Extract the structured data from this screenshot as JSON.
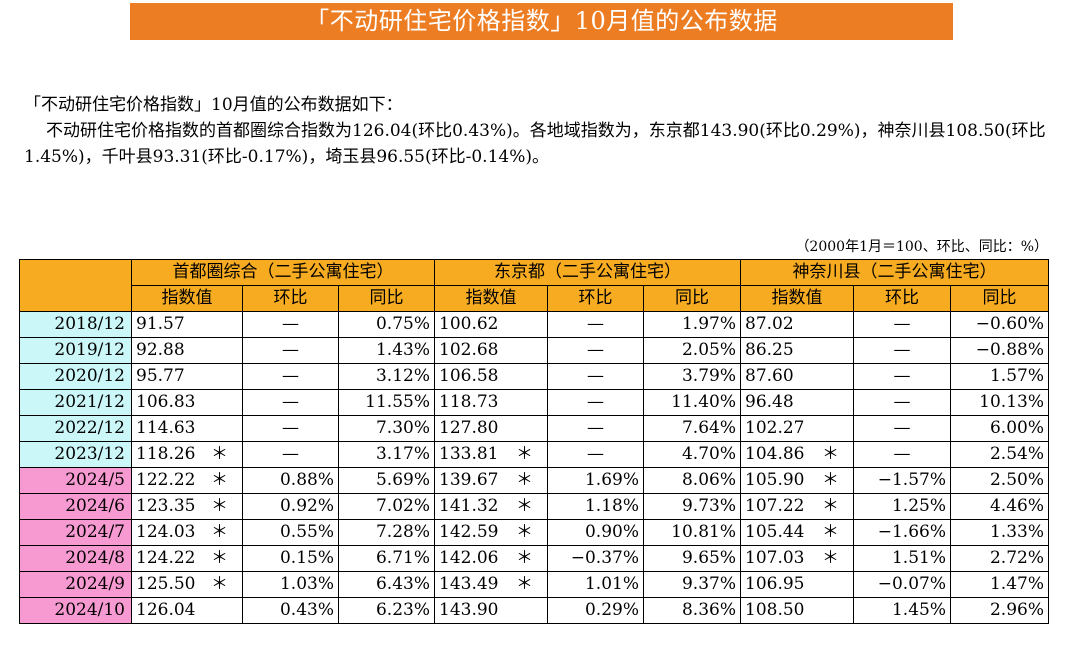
{
  "title": "「不动研住宅价格指数」10月值的公布数据",
  "intro": {
    "line1": "「不动研住宅价格指数」10月值的公布数据如下：",
    "paragraph": "不动研住宅价格指数的首都圈综合指数为126.04(环比0.43%)。各地域指数为，东京都143.90(环比0.29%)，神奈川县108.50(环比1.45%)，千叶县93.31(环比-0.17%)，埼玉县96.55(环比-0.14%)。"
  },
  "unit_note": "（2000年1月＝100、环比、同比：%）",
  "table": {
    "groups": [
      "首都圈综合（二手公寓住宅）",
      "东京都（二手公寓住宅）",
      "神奈川县（二手公寓住宅）"
    ],
    "subheaders": [
      "指数值",
      "环比",
      "同比",
      "指数值",
      "环比",
      "同比",
      "指数值",
      "环比",
      "同比"
    ],
    "rows": [
      {
        "label": "2018/12",
        "type": "annual",
        "cells": [
          {
            "idx": "91.57",
            "star": "",
            "mom": "—",
            "yoy": "0.75%"
          },
          {
            "idx": "100.62",
            "star": "",
            "mom": "—",
            "yoy": "1.97%"
          },
          {
            "idx": "87.02",
            "star": "",
            "mom": "—",
            "yoy": "−0.60%"
          }
        ]
      },
      {
        "label": "2019/12",
        "type": "annual",
        "cells": [
          {
            "idx": "92.88",
            "star": "",
            "mom": "—",
            "yoy": "1.43%"
          },
          {
            "idx": "102.68",
            "star": "",
            "mom": "—",
            "yoy": "2.05%"
          },
          {
            "idx": "86.25",
            "star": "",
            "mom": "—",
            "yoy": "−0.88%"
          }
        ]
      },
      {
        "label": "2020/12",
        "type": "annual",
        "cells": [
          {
            "idx": "95.77",
            "star": "",
            "mom": "—",
            "yoy": "3.12%"
          },
          {
            "idx": "106.58",
            "star": "",
            "mom": "—",
            "yoy": "3.79%"
          },
          {
            "idx": "87.60",
            "star": "",
            "mom": "—",
            "yoy": "1.57%"
          }
        ]
      },
      {
        "label": "2021/12",
        "type": "annual",
        "cells": [
          {
            "idx": "106.83",
            "star": "",
            "mom": "—",
            "yoy": "11.55%"
          },
          {
            "idx": "118.73",
            "star": "",
            "mom": "—",
            "yoy": "11.40%"
          },
          {
            "idx": "96.48",
            "star": "",
            "mom": "—",
            "yoy": "10.13%"
          }
        ]
      },
      {
        "label": "2022/12",
        "type": "annual",
        "cells": [
          {
            "idx": "114.63",
            "star": "",
            "mom": "—",
            "yoy": "7.30%"
          },
          {
            "idx": "127.80",
            "star": "",
            "mom": "—",
            "yoy": "7.64%"
          },
          {
            "idx": "102.27",
            "star": "",
            "mom": "—",
            "yoy": "6.00%"
          }
        ]
      },
      {
        "label": "2023/12",
        "type": "annual",
        "cells": [
          {
            "idx": "118.26",
            "star": "＊",
            "mom": "—",
            "yoy": "3.17%"
          },
          {
            "idx": "133.81",
            "star": "＊",
            "mom": "—",
            "yoy": "4.70%"
          },
          {
            "idx": "104.86",
            "star": "＊",
            "mom": "—",
            "yoy": "2.54%"
          }
        ]
      },
      {
        "label": "2024/5",
        "type": "monthly",
        "cells": [
          {
            "idx": "122.22",
            "star": "＊",
            "mom": "0.88%",
            "yoy": "5.69%"
          },
          {
            "idx": "139.67",
            "star": "＊",
            "mom": "1.69%",
            "yoy": "8.06%"
          },
          {
            "idx": "105.90",
            "star": "＊",
            "mom": "−1.57%",
            "yoy": "2.50%"
          }
        ]
      },
      {
        "label": "2024/6",
        "type": "monthly",
        "cells": [
          {
            "idx": "123.35",
            "star": "＊",
            "mom": "0.92%",
            "yoy": "7.02%"
          },
          {
            "idx": "141.32",
            "star": "＊",
            "mom": "1.18%",
            "yoy": "9.73%"
          },
          {
            "idx": "107.22",
            "star": "＊",
            "mom": "1.25%",
            "yoy": "4.46%"
          }
        ]
      },
      {
        "label": "2024/7",
        "type": "monthly",
        "cells": [
          {
            "idx": "124.03",
            "star": "＊",
            "mom": "0.55%",
            "yoy": "7.28%"
          },
          {
            "idx": "142.59",
            "star": "＊",
            "mom": "0.90%",
            "yoy": "10.81%"
          },
          {
            "idx": "105.44",
            "star": "＊",
            "mom": "−1.66%",
            "yoy": "1.33%"
          }
        ]
      },
      {
        "label": "2024/8",
        "type": "monthly",
        "cells": [
          {
            "idx": "124.22",
            "star": "＊",
            "mom": "0.15%",
            "yoy": "6.71%"
          },
          {
            "idx": "142.06",
            "star": "＊",
            "mom": "−0.37%",
            "yoy": "9.65%"
          },
          {
            "idx": "107.03",
            "star": "＊",
            "mom": "1.51%",
            "yoy": "2.72%"
          }
        ]
      },
      {
        "label": "2024/9",
        "type": "monthly",
        "cells": [
          {
            "idx": "125.50",
            "star": "＊",
            "mom": "1.03%",
            "yoy": "6.43%"
          },
          {
            "idx": "143.49",
            "star": "＊",
            "mom": "1.01%",
            "yoy": "9.37%"
          },
          {
            "idx": "106.95",
            "star": "",
            "mom": "−0.07%",
            "yoy": "1.47%"
          }
        ]
      },
      {
        "label": "2024/10",
        "type": "monthly",
        "cells": [
          {
            "idx": "126.04",
            "star": "",
            "mom": "0.43%",
            "yoy": "6.23%"
          },
          {
            "idx": "143.90",
            "star": "",
            "mom": "0.29%",
            "yoy": "8.36%"
          },
          {
            "idx": "108.50",
            "star": "",
            "mom": "1.45%",
            "yoy": "2.96%"
          }
        ]
      }
    ]
  },
  "colors": {
    "title_bg": "#ed7d22",
    "header_bg": "#f7ab21",
    "annual_row_label_bg": "#ccf7f9",
    "monthly_row_label_bg": "#f79ad2"
  }
}
